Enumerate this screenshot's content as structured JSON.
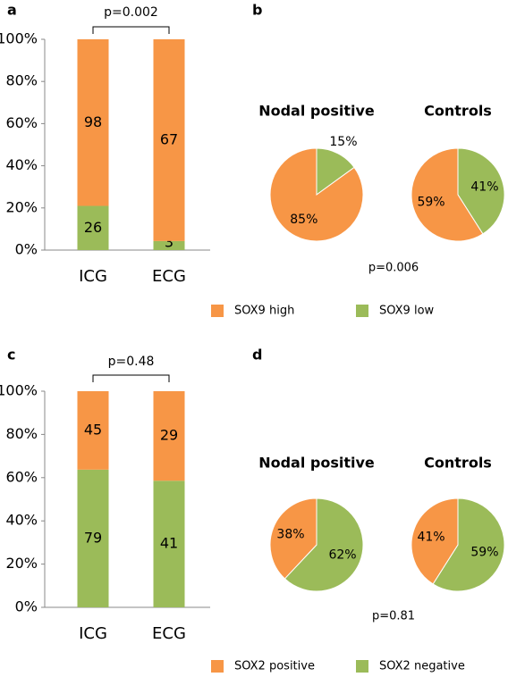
{
  "chart_data": [
    {
      "type": "bar",
      "panel": "a",
      "stacked": "percent",
      "annotation": "p=0.002",
      "categories": [
        "ICG",
        "ECG"
      ],
      "series": [
        {
          "name": "SOX9 high",
          "color": "#F79646",
          "values": [
            98,
            67
          ]
        },
        {
          "name": "SOX9 low",
          "color": "#9BBB59",
          "values": [
            26,
            3
          ]
        }
      ],
      "ylim": [
        0,
        100
      ],
      "yticks": [
        {
          "value": 0,
          "label": "0%"
        },
        {
          "value": 20,
          "label": "20%"
        },
        {
          "value": 40,
          "label": "40%"
        },
        {
          "value": 60,
          "label": "60%"
        },
        {
          "value": 80,
          "label": "80%"
        },
        {
          "value": 100,
          "label": "100%"
        }
      ]
    },
    {
      "type": "pie",
      "panel": "b",
      "title": "Nodal positive",
      "annotation": "p=0.006",
      "values": [
        15,
        85
      ],
      "value_labels": [
        "15%",
        "85%"
      ],
      "colors": [
        "#9BBB59",
        "#F79646"
      ]
    },
    {
      "type": "pie",
      "title": "Controls",
      "values": [
        41,
        59
      ],
      "value_labels": [
        "41%",
        "59%"
      ],
      "colors": [
        "#9BBB59",
        "#F79646"
      ]
    },
    {
      "type": "bar",
      "panel": "c",
      "stacked": "percent",
      "annotation": "p=0.48",
      "categories": [
        "ICG",
        "ECG"
      ],
      "series": [
        {
          "name": "SOX2 positive",
          "color": "#F79646",
          "values": [
            45,
            29
          ]
        },
        {
          "name": "SOX2 negative",
          "color": "#9BBB59",
          "values": [
            79,
            41
          ]
        }
      ],
      "ylim": [
        0,
        100
      ],
      "yticks": [
        {
          "value": 0,
          "label": "0%"
        },
        {
          "value": 20,
          "label": "20%"
        },
        {
          "value": 40,
          "label": "40%"
        },
        {
          "value": 60,
          "label": "60%"
        },
        {
          "value": 80,
          "label": "80%"
        },
        {
          "value": 100,
          "label": "100%"
        }
      ]
    },
    {
      "type": "pie",
      "panel": "d",
      "title": "Nodal positive",
      "annotation": "p=0.81",
      "values": [
        62,
        38
      ],
      "value_labels": [
        "62%",
        "38%"
      ],
      "colors": [
        "#9BBB59",
        "#F79646"
      ]
    },
    {
      "type": "pie",
      "title": "Controls",
      "values": [
        59,
        41
      ],
      "value_labels": [
        "59%",
        "41%"
      ],
      "colors": [
        "#9BBB59",
        "#F79646"
      ]
    }
  ]
}
